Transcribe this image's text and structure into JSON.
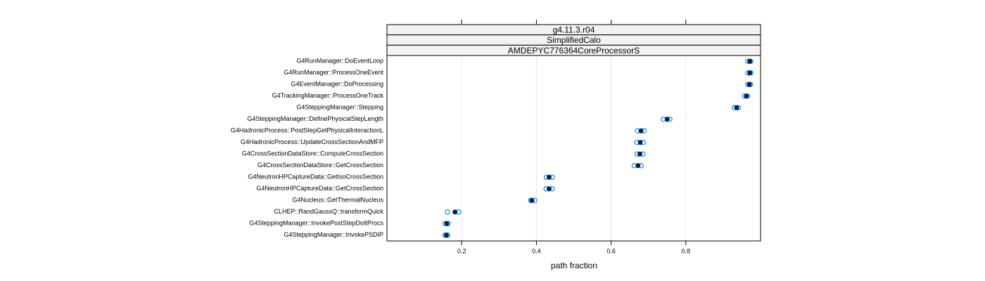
{
  "chart_data": {
    "type": "dot",
    "strips": [
      "g4.11.3.r04",
      "SimplifiedCalo",
      "AMDEPYC776364CoreProcessorS"
    ],
    "x_label": "path fraction",
    "categories": [
      "G4RunManager::DoEventLoop",
      "G4RunManager::ProcessOneEvent",
      "G4EventManager::DoProcessing",
      "G4TrackingManager::ProcessOneTrack",
      "G4SteppingManager::Stepping",
      "G4SteppingManager::DefinePhysicalStepLength",
      "G4HadronicProcess::PostStepGetPhysicalInteractionL",
      "G4HadronicProcess::UpdateCrossSectionAndMFP",
      "G4CrossSectionDataStore::ComputeCrossSection",
      "G4CrossSectionDataStore::GetCrossSection",
      "G4NeutronHPCaptureData::GetIsoCrossSection",
      "G4NeutronHPCaptureData::GetCrossSection",
      "G4Nucleus::GetThermalNucleus",
      "CLHEP::RandGaussQ::transformQuick",
      "G4SteppingManager::InvokePostStepDoItProcs",
      "G4SteppingManager::InvokePSDIP"
    ],
    "series": [
      {
        "color": "#0080ff",
        "filled": false,
        "values": [
          0.966,
          0.966,
          0.966,
          0.957,
          0.93,
          0.74,
          0.671,
          0.669,
          0.67,
          0.662,
          0.427,
          0.426,
          0.385,
          0.162,
          0.156,
          0.155
        ]
      },
      {
        "color": "#0080ff",
        "filled": false,
        "values": [
          0.974,
          0.974,
          0.973,
          0.965,
          0.94,
          0.757,
          0.688,
          0.686,
          0.685,
          0.68,
          0.442,
          0.442,
          0.395,
          0.192,
          0.164,
          0.162
        ]
      },
      {
        "color": "#002244",
        "filled": true,
        "values": [
          0.971,
          0.971,
          0.97,
          0.962,
          0.936,
          0.75,
          0.68,
          0.678,
          0.677,
          0.672,
          0.434,
          0.434,
          0.388,
          0.182,
          0.16,
          0.159
        ]
      }
    ],
    "xlim": [
      0,
      1
    ],
    "xticks": [
      0.2,
      0.4,
      0.6,
      0.8
    ],
    "grid": true
  }
}
